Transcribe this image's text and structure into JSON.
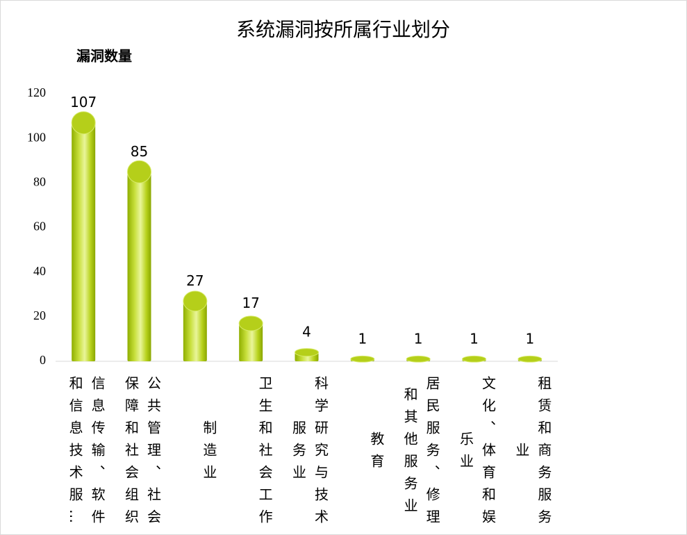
{
  "chart_data": {
    "type": "bar",
    "title": "系统漏洞按所属行业划分",
    "y_label": "漏洞数量",
    "categories": [
      "信息传输、软件和信息技术服…",
      "公共管理、社会保障和社会组织",
      "制造业",
      "卫生和社会工作",
      "科学研究与技术服务业",
      "教育",
      "居民服务、修理和其他服务业",
      "文化、体育和娱乐业",
      "租赁和商务服务业"
    ],
    "values": [
      107,
      85,
      27,
      17,
      4,
      1,
      1,
      1,
      1
    ],
    "color": "#b5cf1a",
    "ylim": [
      0,
      120
    ],
    "yticks": [
      0,
      20,
      40,
      60,
      80,
      100,
      120
    ],
    "grid": false
  }
}
